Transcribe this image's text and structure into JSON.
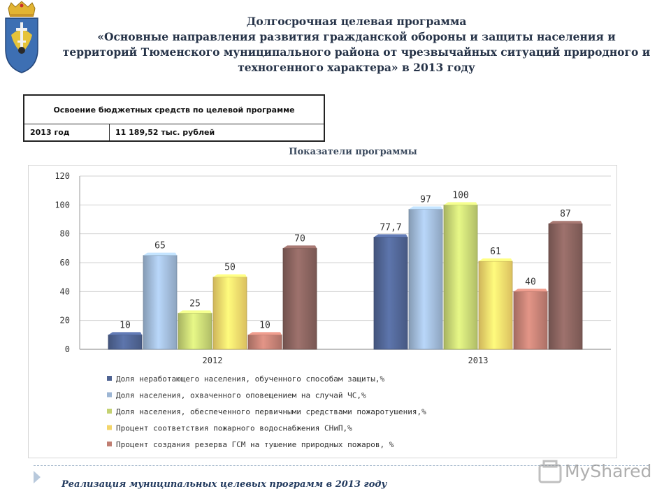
{
  "header": {
    "title_lines": [
      "Долгосрочная целевая программа",
      "«Основные направления развития гражданской обороны и защиты населения и",
      "территорий Тюменского муниципального района от чрезвычайных ситуаций природного и",
      "техногенного характера» в 2013 году"
    ]
  },
  "budget": {
    "header": "Освоение бюджетных средств по целевой программе",
    "year": "2013 год",
    "amount": "11 189,52 тыс. рублей"
  },
  "subtitle": "Показатели программы",
  "footer": {
    "text": "Реализация муниципальных целевых программ в 2013 году"
  },
  "watermark": {
    "text": "MyShared"
  },
  "colors": {
    "s1": "#4f6392",
    "s2": "#9db6d4",
    "s3": "#c4d272",
    "s4": "#f3d56a",
    "s5": "#c07e72",
    "s6": "#86615c"
  },
  "chart_data": {
    "type": "bar",
    "categories": [
      "2012",
      "2013"
    ],
    "ylim": [
      0,
      120
    ],
    "yticks": [
      0,
      20,
      40,
      60,
      80,
      100,
      120
    ],
    "grid": true,
    "legend_position": "bottom",
    "series": [
      {
        "name": "Доля неработающего населения, обученного способам защиты,%",
        "values": [
          10,
          77.7
        ],
        "labels": [
          "10",
          "77,7"
        ],
        "color": "#4f6392"
      },
      {
        "name": "Доля населения, охваченного оповещением на случай ЧС,%",
        "values": [
          65,
          97
        ],
        "labels": [
          "65",
          "97"
        ],
        "color": "#9db6d4"
      },
      {
        "name": "Доля населения, обеспеченного первичными средствами пожаротушения,%",
        "values": [
          25,
          100
        ],
        "labels": [
          "25",
          "100"
        ],
        "color": "#c4d272"
      },
      {
        "name": "Процент соответствия пожарного водоснабжения СНиП,%",
        "values": [
          50,
          61
        ],
        "labels": [
          "50",
          "61"
        ],
        "color": "#f3d56a"
      },
      {
        "name": "Процент создания резерва ГСМ на тушение природных пожаров, %",
        "values": [
          10,
          40
        ],
        "labels": [
          "10",
          "40"
        ],
        "color": "#c07e72"
      },
      {
        "name": "",
        "values": [
          70,
          87
        ],
        "labels": [
          "70",
          "87"
        ],
        "color": "#86615c"
      }
    ]
  }
}
